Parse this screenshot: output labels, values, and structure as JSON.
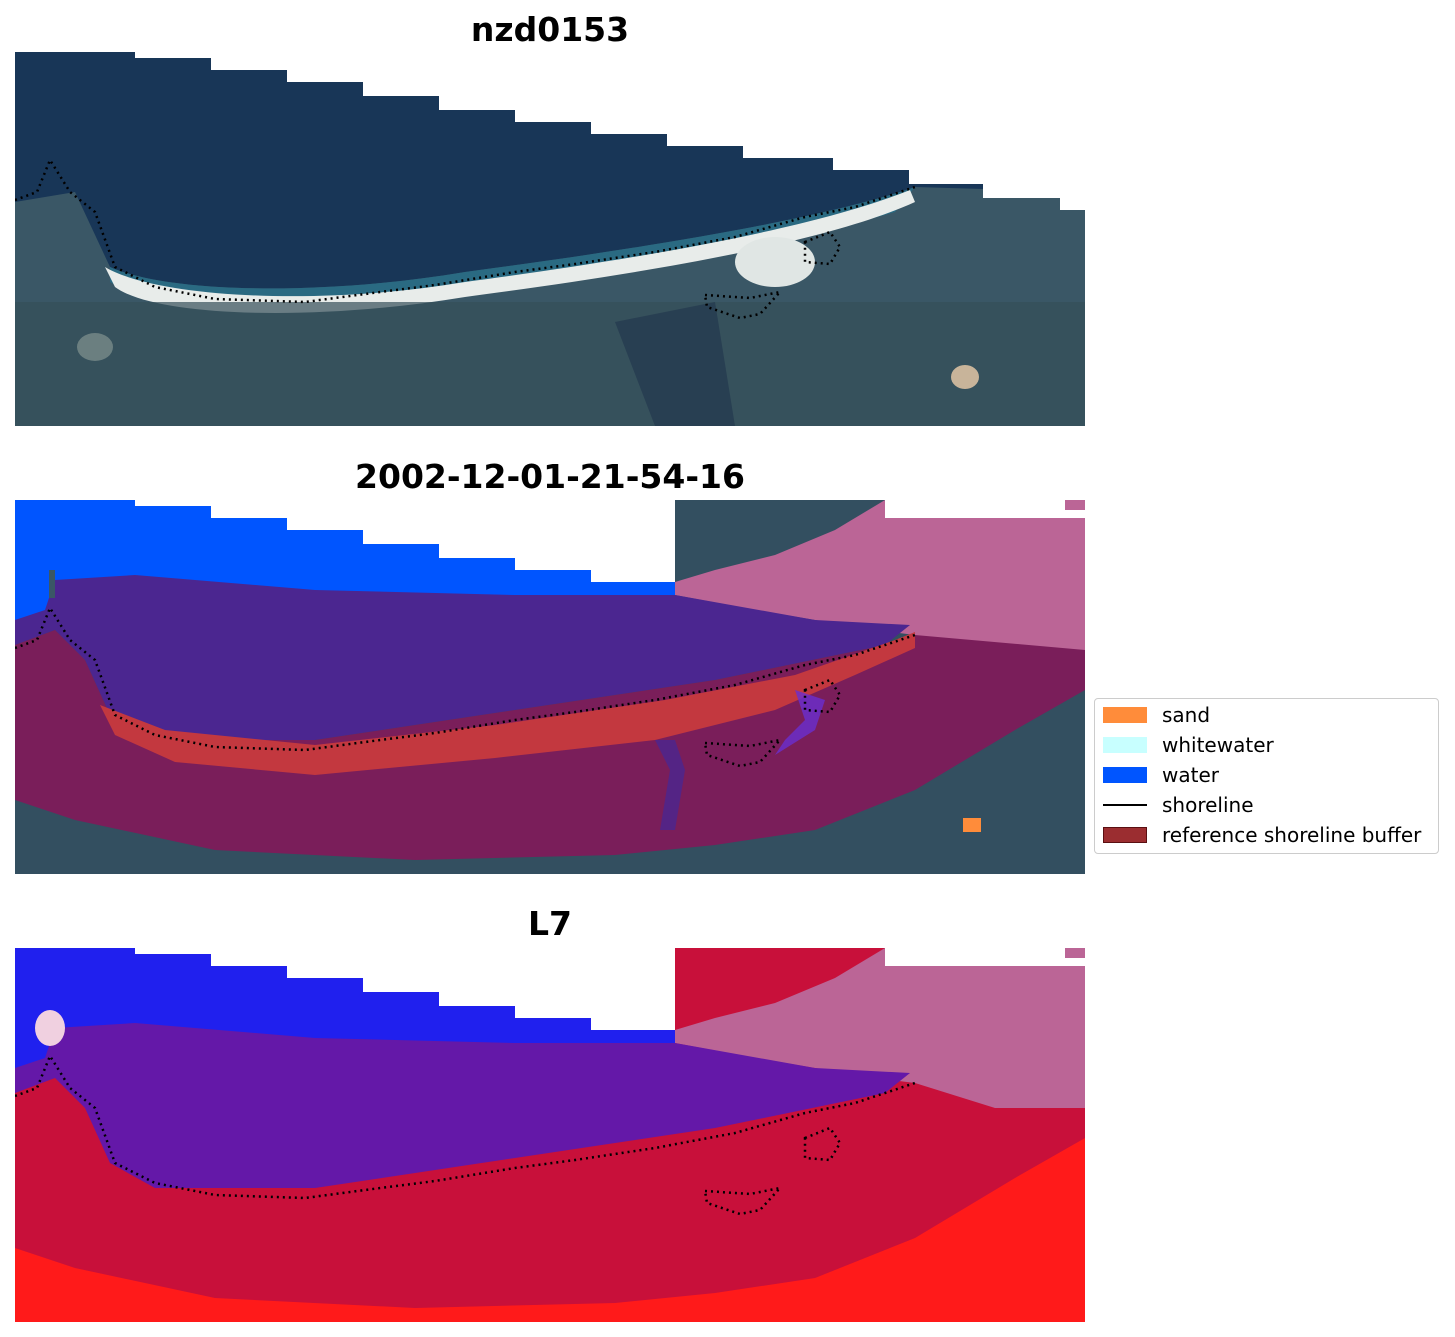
{
  "panels": [
    {
      "title": "nzd0153",
      "kind": "rgb-image"
    },
    {
      "title": "2002-12-01-21-54-16",
      "kind": "classification-overlay"
    },
    {
      "title": "L7",
      "kind": "index-overlay"
    }
  ],
  "legend": {
    "items": [
      {
        "label": "sand",
        "color": "#ff8c3a",
        "type": "patch"
      },
      {
        "label": "whitewater",
        "color": "#c8ffff",
        "type": "patch"
      },
      {
        "label": "water",
        "color": "#0055ff",
        "type": "patch"
      },
      {
        "label": "shoreline",
        "color": "#000000",
        "type": "line"
      },
      {
        "label": "reference shoreline buffer",
        "color": "#9b2d30",
        "type": "patch-outlined"
      }
    ]
  }
}
